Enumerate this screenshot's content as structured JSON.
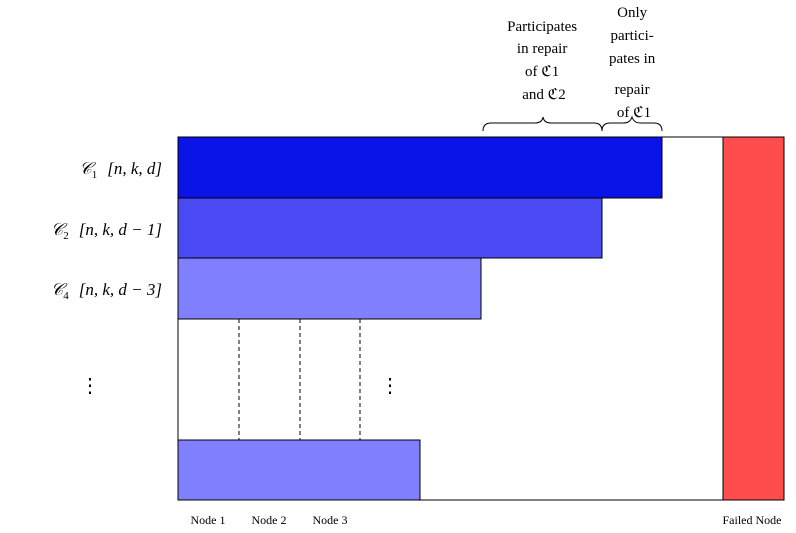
{
  "annotations": {
    "shared": {
      "lines": [
        "Participates",
        "in repair",
        "of ℭ1",
        "and ℭ2"
      ]
    },
    "only": {
      "lines": [
        "Only",
        "partici-",
        "pates in",
        "repair",
        "of ℭ1"
      ]
    }
  },
  "rows": [
    {
      "code": "𝒞",
      "sub": "1",
      "params": "[n, k, d]",
      "color": "#0a14e8"
    },
    {
      "code": "𝒞",
      "sub": "2",
      "params": "[n, k, d − 1]",
      "color": "#4a4af4"
    },
    {
      "code": "𝒞",
      "sub": "4",
      "params": "[n, k, d − 3]",
      "color": "#8080ff"
    }
  ],
  "last_row": {
    "color": "#8080ff"
  },
  "ellipsis": "⋮",
  "node_labels": [
    "Node 1",
    "Node 2",
    "Node 3"
  ],
  "failed_node": {
    "label": "Failed Node",
    "color": "#ff4d4d"
  }
}
